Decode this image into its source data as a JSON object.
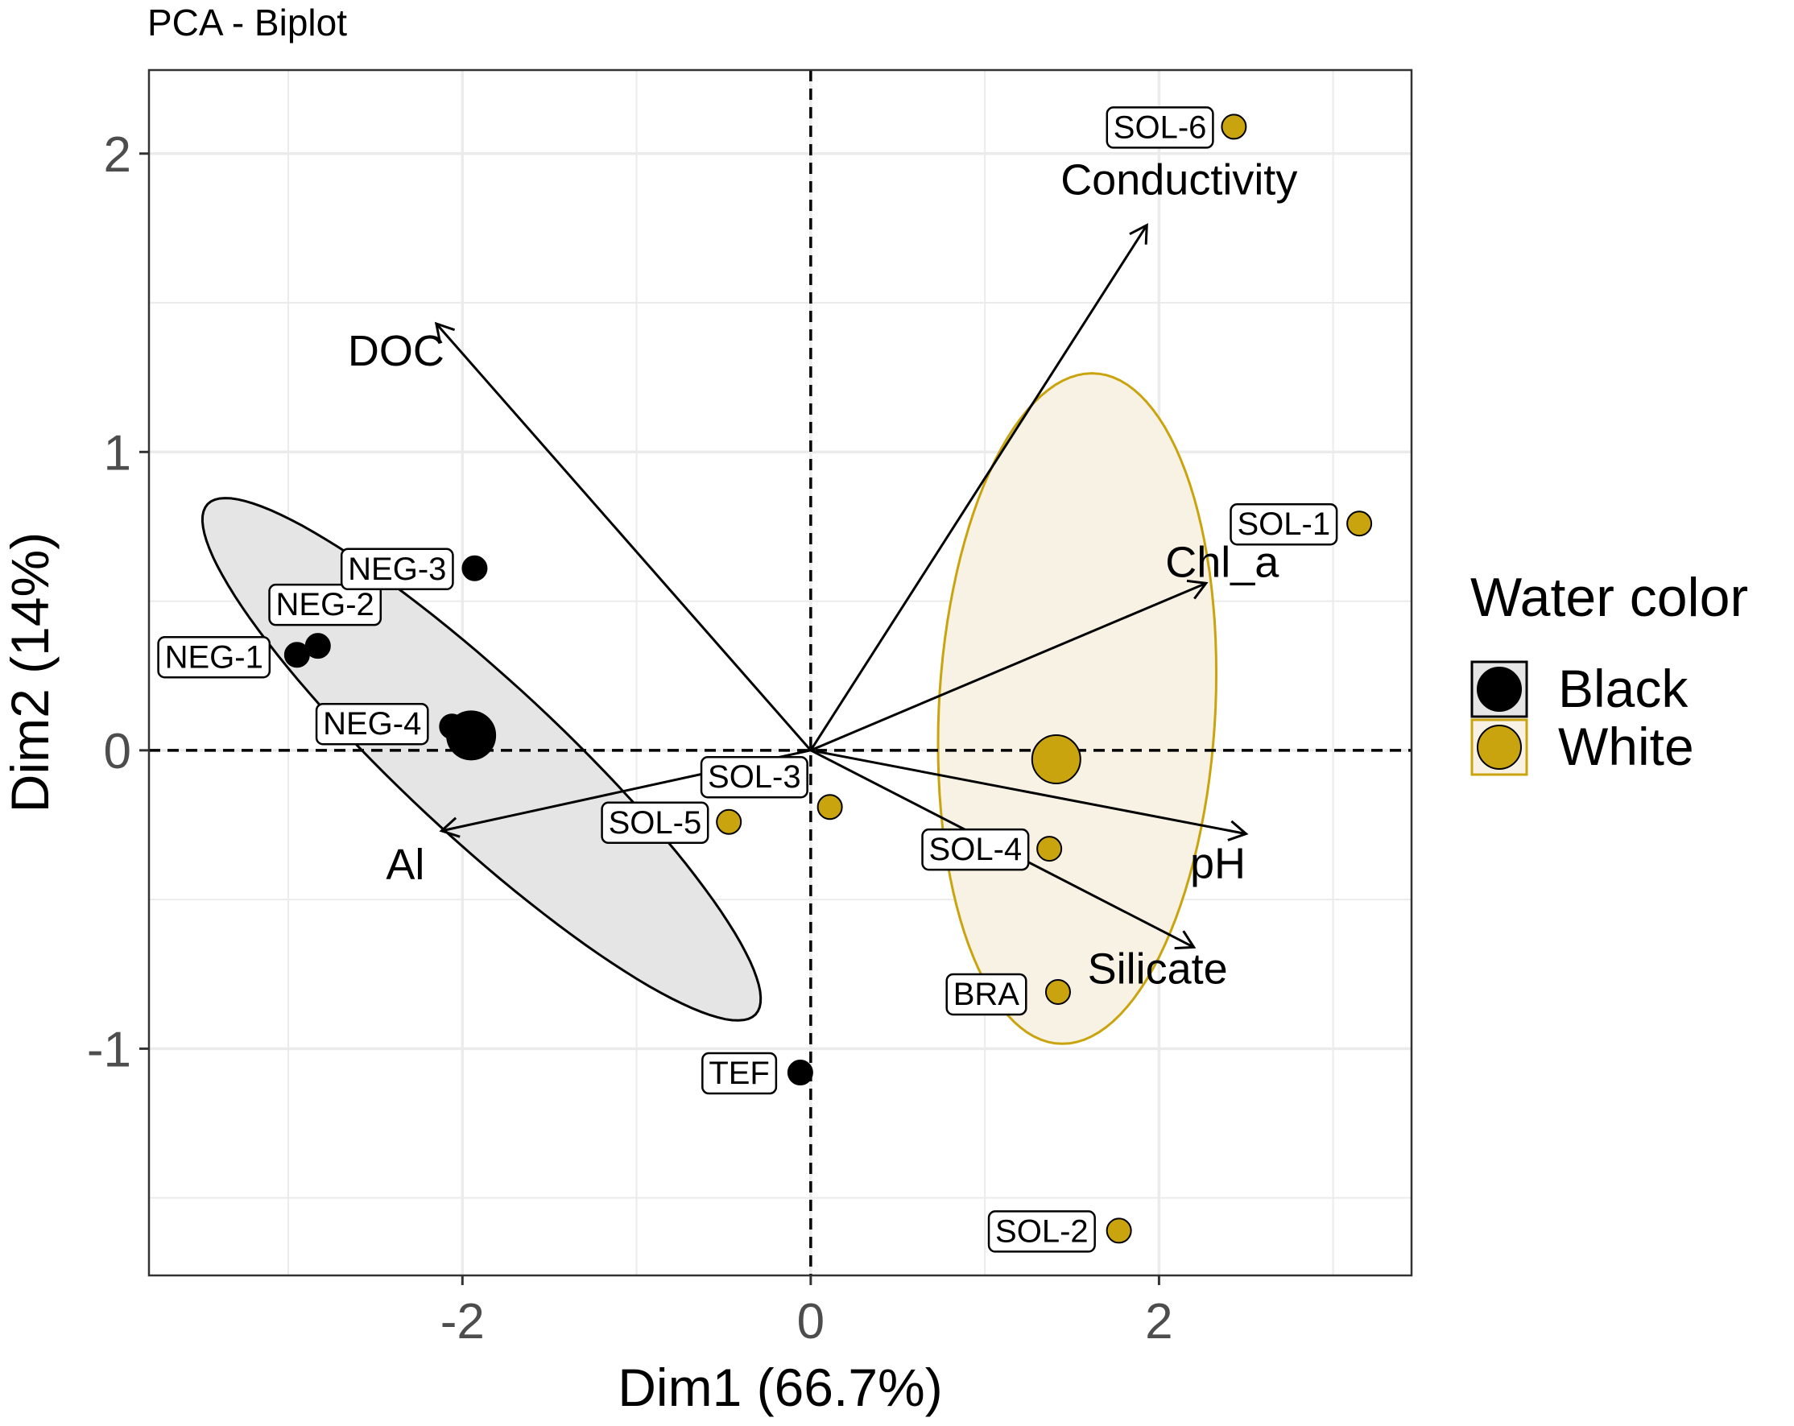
{
  "chart_data": {
    "type": "scatter",
    "title": "PCA - Biplot",
    "xlabel": "Dim1 (66.7%)",
    "ylabel": "Dim2 (14%)",
    "xlim": [
      -3.8,
      3.45
    ],
    "ylim": [
      -1.76,
      2.28
    ],
    "x_ticks": [
      {
        "value": -2,
        "label": "-2"
      },
      {
        "value": 0,
        "label": "0"
      },
      {
        "value": 2,
        "label": "2"
      }
    ],
    "y_ticks": [
      {
        "value": -1,
        "label": "-1"
      },
      {
        "value": 0,
        "label": "0"
      },
      {
        "value": 1,
        "label": "1"
      },
      {
        "value": 2,
        "label": "2"
      }
    ],
    "grid": true,
    "legend": {
      "title": "Water color",
      "position": "right",
      "entries": [
        {
          "label": "Black",
          "color": "#000000"
        },
        {
          "label": "White",
          "color": "#C9A40E"
        }
      ]
    },
    "colors": {
      "black": "#000000",
      "white": "#C9A40E",
      "black_ellipse_fill": "#E5E5E5",
      "white_ellipse_fill": "#F8F2E5",
      "white_ellipse_stroke": "#C9A40E",
      "grid": "#EBEBEB",
      "panel_border": "#333333",
      "axis_text": "#4D4D4D"
    },
    "points": [
      {
        "label": "NEG-1",
        "x": -2.95,
        "y": 0.32,
        "group": "Black"
      },
      {
        "label": "NEG-2",
        "x": -2.83,
        "y": 0.35,
        "group": "Black"
      },
      {
        "label": "NEG-3",
        "x": -1.93,
        "y": 0.61,
        "group": "Black"
      },
      {
        "label": "NEG-4",
        "x": -2.06,
        "y": 0.08,
        "group": "Black"
      },
      {
        "label": "TEF",
        "x": -0.06,
        "y": -1.08,
        "group": "Black"
      },
      {
        "label": "SOL-1",
        "x": 3.15,
        "y": 0.76,
        "group": "White"
      },
      {
        "label": "SOL-2",
        "x": 1.77,
        "y": -1.61,
        "group": "White"
      },
      {
        "label": "SOL-3",
        "x": 0.11,
        "y": -0.19,
        "group": "White"
      },
      {
        "label": "SOL-4",
        "x": 1.37,
        "y": -0.33,
        "group": "White"
      },
      {
        "label": "SOL-5",
        "x": -0.47,
        "y": -0.24,
        "group": "White"
      },
      {
        "label": "SOL-6",
        "x": 2.43,
        "y": 2.09,
        "group": "White"
      },
      {
        "label": "BRA",
        "x": 1.42,
        "y": -0.81,
        "group": "White"
      }
    ],
    "group_means": [
      {
        "group": "Black",
        "x": -1.95,
        "y": 0.05
      },
      {
        "group": "White",
        "x": 1.41,
        "y": -0.03
      }
    ],
    "ellipses": [
      {
        "group": "Black",
        "cx": -1.89,
        "cy": -0.03,
        "semi_major": 1.8,
        "semi_minor": 0.31,
        "angle_deg": -27.5
      },
      {
        "group": "White",
        "cx": 1.53,
        "cy": 0.14,
        "semi_major": 1.13,
        "semi_minor": 0.79,
        "angle_deg": 81.5
      }
    ],
    "loading_arrows": [
      {
        "label": "DOC",
        "x": -2.15,
        "y": 1.43
      },
      {
        "label": "Conductivity",
        "x": 1.93,
        "y": 1.76
      },
      {
        "label": "Chl_a",
        "x": 2.27,
        "y": 0.56
      },
      {
        "label": "pH",
        "x": 2.5,
        "y": -0.28
      },
      {
        "label": "Silicate",
        "x": 2.2,
        "y": -0.66
      },
      {
        "label": "Al",
        "x": -2.12,
        "y": -0.27
      }
    ]
  }
}
